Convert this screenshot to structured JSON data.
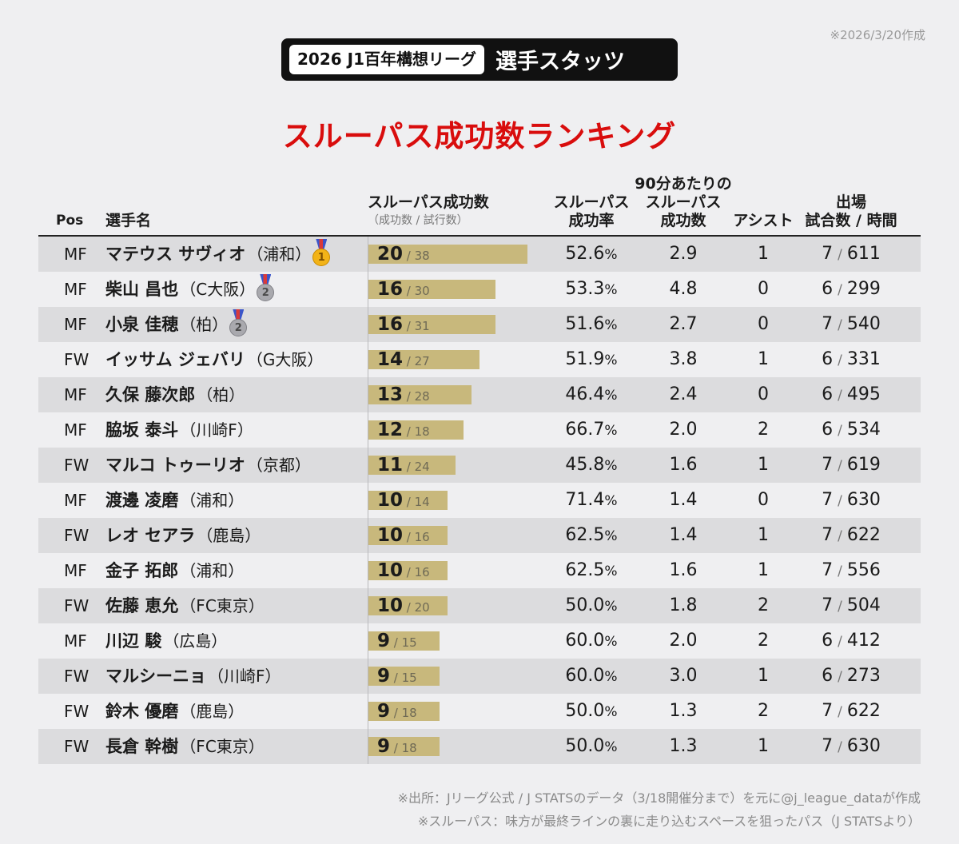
{
  "created_note": "※2026/3/20作成",
  "title": {
    "league": "2026 J1百年構想リーグ",
    "main": "選手スタッツ"
  },
  "ranking_title": "スルーパス成功数ランキング",
  "headers": {
    "pos": "Pos",
    "name": "選手名",
    "through_pass": "スルーパス成功数",
    "through_pass_sub": "（成功数 / 試行数）",
    "rate_1": "スルーパス",
    "rate_2": "成功率",
    "per90_1": "90分あたりの",
    "per90_2": "スルーパス",
    "per90_3": "成功数",
    "assist": "アシスト",
    "apps_1": "出場",
    "apps_2": "試合数 / 時間"
  },
  "colors": {
    "title_red": "#d90d0d",
    "bar": "#c8b87c",
    "gold_medal": "#f2b318",
    "silver_medal": "#a9a9ae"
  },
  "chart_data": {
    "type": "table",
    "bar_max": 20,
    "rows": [
      {
        "pos": "MF",
        "name": "マテウス サヴィオ",
        "club": "（浦和）",
        "medal": "gold",
        "rank_digit": "1",
        "made": 20,
        "attempts": 38,
        "rate": "52.6",
        "per90": "2.9",
        "assists": "1",
        "games": "7",
        "minutes": "611"
      },
      {
        "pos": "MF",
        "name": "柴山 昌也",
        "club": "（C大阪）",
        "medal": "silver",
        "rank_digit": "2",
        "made": 16,
        "attempts": 30,
        "rate": "53.3",
        "per90": "4.8",
        "assists": "0",
        "games": "6",
        "minutes": "299"
      },
      {
        "pos": "MF",
        "name": "小泉 佳穂",
        "club": "（柏）",
        "medal": "silver",
        "rank_digit": "2",
        "made": 16,
        "attempts": 31,
        "rate": "51.6",
        "per90": "2.7",
        "assists": "0",
        "games": "7",
        "minutes": "540"
      },
      {
        "pos": "FW",
        "name": "イッサム ジェバリ",
        "club": "（G大阪）",
        "medal": "",
        "rank_digit": "",
        "made": 14,
        "attempts": 27,
        "rate": "51.9",
        "per90": "3.8",
        "assists": "1",
        "games": "6",
        "minutes": "331"
      },
      {
        "pos": "MF",
        "name": "久保 藤次郎",
        "club": "（柏）",
        "medal": "",
        "rank_digit": "",
        "made": 13,
        "attempts": 28,
        "rate": "46.4",
        "per90": "2.4",
        "assists": "0",
        "games": "6",
        "minutes": "495"
      },
      {
        "pos": "MF",
        "name": "脇坂 泰斗",
        "club": "（川崎F）",
        "medal": "",
        "rank_digit": "",
        "made": 12,
        "attempts": 18,
        "rate": "66.7",
        "per90": "2.0",
        "assists": "2",
        "games": "6",
        "minutes": "534"
      },
      {
        "pos": "FW",
        "name": "マルコ トゥーリオ",
        "club": "（京都）",
        "medal": "",
        "rank_digit": "",
        "made": 11,
        "attempts": 24,
        "rate": "45.8",
        "per90": "1.6",
        "assists": "1",
        "games": "7",
        "minutes": "619"
      },
      {
        "pos": "MF",
        "name": "渡邊 凌磨",
        "club": "（浦和）",
        "medal": "",
        "rank_digit": "",
        "made": 10,
        "attempts": 14,
        "rate": "71.4",
        "per90": "1.4",
        "assists": "0",
        "games": "7",
        "minutes": "630"
      },
      {
        "pos": "FW",
        "name": "レオ セアラ",
        "club": "（鹿島）",
        "medal": "",
        "rank_digit": "",
        "made": 10,
        "attempts": 16,
        "rate": "62.5",
        "per90": "1.4",
        "assists": "1",
        "games": "7",
        "minutes": "622"
      },
      {
        "pos": "MF",
        "name": "金子 拓郎",
        "club": "（浦和）",
        "medal": "",
        "rank_digit": "",
        "made": 10,
        "attempts": 16,
        "rate": "62.5",
        "per90": "1.6",
        "assists": "1",
        "games": "7",
        "minutes": "556"
      },
      {
        "pos": "FW",
        "name": "佐藤 恵允",
        "club": "（FC東京）",
        "medal": "",
        "rank_digit": "",
        "made": 10,
        "attempts": 20,
        "rate": "50.0",
        "per90": "1.8",
        "assists": "2",
        "games": "7",
        "minutes": "504"
      },
      {
        "pos": "MF",
        "name": "川辺 駿",
        "club": "（広島）",
        "medal": "",
        "rank_digit": "",
        "made": 9,
        "attempts": 15,
        "rate": "60.0",
        "per90": "2.0",
        "assists": "2",
        "games": "6",
        "minutes": "412"
      },
      {
        "pos": "FW",
        "name": "マルシーニョ",
        "club": "（川崎F）",
        "medal": "",
        "rank_digit": "",
        "made": 9,
        "attempts": 15,
        "rate": "60.0",
        "per90": "3.0",
        "assists": "1",
        "games": "6",
        "minutes": "273"
      },
      {
        "pos": "FW",
        "name": "鈴木 優磨",
        "club": "（鹿島）",
        "medal": "",
        "rank_digit": "",
        "made": 9,
        "attempts": 18,
        "rate": "50.0",
        "per90": "1.3",
        "assists": "2",
        "games": "7",
        "minutes": "622"
      },
      {
        "pos": "FW",
        "name": "長倉 幹樹",
        "club": "（FC東京）",
        "medal": "",
        "rank_digit": "",
        "made": 9,
        "attempts": 18,
        "rate": "50.0",
        "per90": "1.3",
        "assists": "1",
        "games": "7",
        "minutes": "630"
      }
    ]
  },
  "notes": {
    "source": "※出所：Jリーグ公式 / J STATSのデータ（3/18開催分まで）を元に@j_league_dataが作成",
    "definition": "※スルーパス：味方が最終ラインの裏に走り込むスペースを狙ったパス（J STATSより）"
  }
}
